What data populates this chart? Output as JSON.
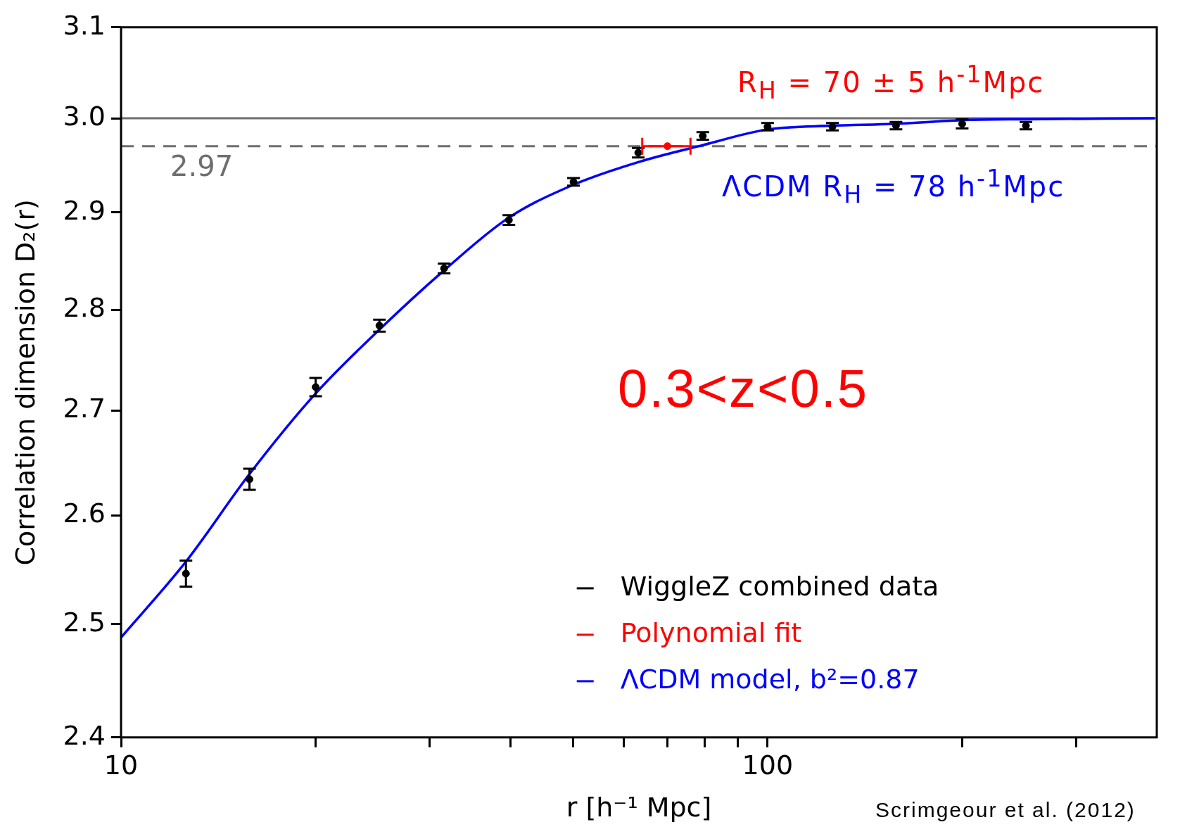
{
  "chart_data": {
    "type": "scatter",
    "xlabel": "r [h⁻¹ Mpc]",
    "ylabel": "Correlation dimension D₂(r)",
    "log": "xy",
    "xlim": [
      10,
      400
    ],
    "xticks": [
      10,
      {
        "value": 20,
        "label": null
      },
      {
        "value": 30,
        "label": null
      },
      {
        "value": 40,
        "label": null
      },
      {
        "value": 50,
        "label": null
      },
      {
        "value": 60,
        "label": null
      },
      {
        "value": 70,
        "label": null
      },
      {
        "value": 80,
        "label": null
      },
      {
        "value": 90,
        "label": null
      },
      100,
      {
        "value": 200,
        "label": null
      },
      {
        "value": 300,
        "label": null
      }
    ],
    "ylim": [
      2.4,
      3.1
    ],
    "yticks": [
      2.4,
      2.5,
      2.6,
      2.7,
      2.8,
      2.9,
      {
        "value": 3,
        "label": "3.0"
      },
      3.1
    ],
    "grid": false,
    "legend": "bottom right",
    "marker": "circle",
    "series": [
      {
        "name": "WiggleZ combined data",
        "color": "#000000",
        "x": [
          12.6,
          15.8,
          20.0,
          25.1,
          31.6,
          39.8,
          50.1,
          63.1,
          79.4,
          100,
          126,
          158,
          200,
          251
        ],
        "values": [
          2.546,
          2.634,
          2.723,
          2.784,
          2.842,
          2.892,
          2.932,
          2.963,
          2.981,
          2.991,
          2.991,
          2.992,
          2.994,
          2.992
        ],
        "errors": [
          0.012,
          0.01,
          0.009,
          0.006,
          0.005,
          0.005,
          0.004,
          0.005,
          0.004,
          0.004,
          0.004,
          0.004,
          0.005,
          0.004
        ]
      },
      {
        "name": "Polynomial fit",
        "color": "#ff0000",
        "x": [
          70
        ],
        "values": [
          2.97
        ],
        "xerrors": [
          [
            64,
            76
          ]
        ]
      },
      {
        "name": "ΛCDM model, b²=0.87",
        "type": "line",
        "marker": "none",
        "color": "#0000ff",
        "x": [
          10,
          12.6,
          15.8,
          19.95,
          25.1,
          31.6,
          39.7,
          50.1,
          63.1,
          79.3,
          100,
          125.7,
          158.3,
          199.5,
          251,
          397
        ],
        "values": [
          2.488,
          2.557,
          2.639,
          2.716,
          2.78,
          2.84,
          2.894,
          2.929,
          2.953,
          2.971,
          2.988,
          2.992,
          2.994,
          2.998,
          2.999,
          3.0
        ]
      }
    ],
    "ref_lines": [
      {
        "axis": "y",
        "value": 3.0,
        "color": "#6e6e6e",
        "line_style": "solid"
      },
      {
        "axis": "y",
        "value": 2.97,
        "label": "2.97",
        "color": "#6e6e6e",
        "line_style": "dashed"
      }
    ],
    "annotations": [
      "R$_{H}$ = 70 ± 5 h$^{-1}$Mpc",
      "ΛCDM R$_{H}$ = 78 h$^{-1}$Mpc",
      "0.3<z<0.5",
      "Scrimgeour et al. (2012)"
    ]
  }
}
